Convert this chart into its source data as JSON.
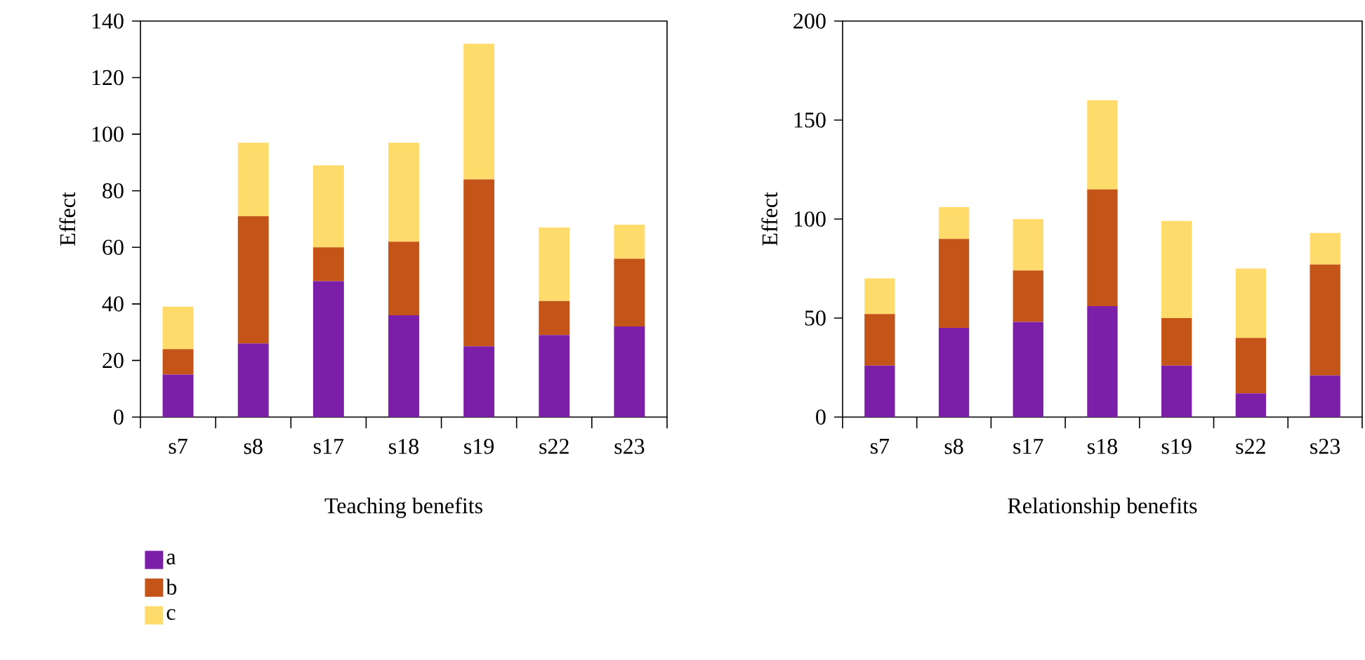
{
  "chart_data": [
    {
      "type": "bar",
      "stacked": true,
      "xlabel": "Teaching benefits",
      "ylabel": "Effect",
      "categories": [
        "s7",
        "s8",
        "s17",
        "s18",
        "s19",
        "s22",
        "s23"
      ],
      "ylim": [
        0,
        140
      ],
      "yticks": [
        0,
        20,
        40,
        60,
        80,
        100,
        120,
        140
      ],
      "legend": "bottom",
      "grid": false,
      "series": [
        {
          "name": "a",
          "color": "#7b1fa8",
          "values": [
            15,
            26,
            48,
            36,
            25,
            29,
            32
          ]
        },
        {
          "name": "b",
          "color": "#c45418",
          "values": [
            9,
            45,
            12,
            26,
            59,
            12,
            24
          ]
        },
        {
          "name": "c",
          "color": "#ffdb6b",
          "values": [
            15,
            26,
            29,
            35,
            48,
            26,
            12
          ]
        }
      ]
    },
    {
      "type": "bar",
      "stacked": true,
      "xlabel": "Relationship benefits",
      "ylabel": "Effect",
      "categories": [
        "s7",
        "s8",
        "s17",
        "s18",
        "s19",
        "s22",
        "s23"
      ],
      "ylim": [
        0,
        200
      ],
      "yticks": [
        0,
        50,
        100,
        150,
        200
      ],
      "legend": false,
      "grid": false,
      "series": [
        {
          "color": "#7b1fa8",
          "values": [
            26,
            45,
            48,
            56,
            26,
            12,
            21
          ]
        },
        {
          "color": "#c45418",
          "values": [
            26,
            45,
            26,
            59,
            24,
            28,
            56
          ]
        },
        {
          "color": "#ffdb6b",
          "values": [
            18,
            16,
            26,
            45,
            49,
            35,
            16
          ]
        }
      ]
    }
  ]
}
